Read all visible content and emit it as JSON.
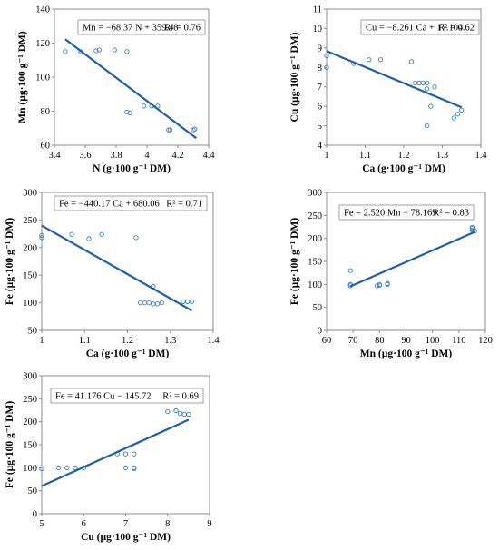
{
  "chart_data": [
    {
      "type": "scatter",
      "xlabel": "N (g·100 g⁻¹ DM)",
      "ylabel": "Mn (µg·100 g⁻¹ DM)",
      "xlim": [
        3.4,
        4.4
      ],
      "ylim": [
        60,
        140
      ],
      "xticks": [
        3.4,
        3.6,
        3.8,
        4.0,
        4.2,
        4.4
      ],
      "yticks": [
        60,
        80,
        100,
        120,
        140
      ],
      "xtick_labels": [
        "3.4",
        "3.6",
        "3.8",
        "4",
        "4.2",
        "4.4"
      ],
      "ytick_labels": [
        "60",
        "80",
        "100",
        "120",
        "140"
      ],
      "equation": "Mn = −68.37 N + 359.48",
      "r2": "R² = 0.76",
      "fit": {
        "slope": -68.37,
        "intercept": 359.48,
        "x_range": [
          3.47,
          4.32
        ]
      },
      "points": [
        [
          3.47,
          115
        ],
        [
          3.57,
          115
        ],
        [
          3.67,
          115.5
        ],
        [
          3.69,
          116
        ],
        [
          3.79,
          116
        ],
        [
          3.87,
          115
        ],
        [
          3.87,
          79.5
        ],
        [
          3.89,
          79
        ],
        [
          3.98,
          83
        ],
        [
          4.03,
          83
        ],
        [
          4.07,
          83
        ],
        [
          4.14,
          69
        ],
        [
          4.15,
          69
        ],
        [
          4.3,
          69
        ],
        [
          4.31,
          69.5
        ]
      ]
    },
    {
      "type": "scatter",
      "xlabel": "Ca (g·100 g⁻¹ DM)",
      "ylabel": "Cu (µg·100 g⁻¹ DM)",
      "xlim": [
        1.0,
        1.4
      ],
      "ylim": [
        4,
        11
      ],
      "xticks": [
        1.0,
        1.1,
        1.2,
        1.3,
        1.4
      ],
      "yticks": [
        4,
        5,
        6,
        7,
        8,
        9,
        10,
        11
      ],
      "xtick_labels": [
        "1",
        "1.1",
        "1.2",
        "1.3",
        "1.4"
      ],
      "ytick_labels": [
        "4",
        "5",
        "6",
        "7",
        "8",
        "9",
        "10",
        "11"
      ],
      "equation": "Cu = −8.261 Ca + 17.104",
      "r2": "R² = 0.62",
      "fit": {
        "slope": -8.261,
        "intercept": 17.104,
        "x_range": [
          1.0,
          1.35
        ]
      },
      "points": [
        [
          1.0,
          8.6
        ],
        [
          1.0,
          8.0
        ],
        [
          1.07,
          8.2
        ],
        [
          1.11,
          8.4
        ],
        [
          1.14,
          8.4
        ],
        [
          1.22,
          8.3
        ],
        [
          1.23,
          7.2
        ],
        [
          1.24,
          7.2
        ],
        [
          1.25,
          7.2
        ],
        [
          1.26,
          7.2
        ],
        [
          1.26,
          6.9
        ],
        [
          1.28,
          7.0
        ],
        [
          1.26,
          5.0
        ],
        [
          1.27,
          6.0
        ],
        [
          1.33,
          5.4
        ],
        [
          1.34,
          5.6
        ],
        [
          1.35,
          5.8
        ]
      ]
    },
    {
      "type": "scatter",
      "xlabel": "Ca (g·100 g⁻¹ DM)",
      "ylabel": "Fe (µg·100 g⁻¹ DM)",
      "xlim": [
        1.0,
        1.4
      ],
      "ylim": [
        50,
        300
      ],
      "xticks": [
        1.0,
        1.1,
        1.2,
        1.3,
        1.4
      ],
      "yticks": [
        50,
        100,
        150,
        200,
        250,
        300
      ],
      "xtick_labels": [
        "1",
        "1.1",
        "1.2",
        "1.3",
        "1.4"
      ],
      "ytick_labels": [
        "50",
        "100",
        "150",
        "200",
        "250",
        "300"
      ],
      "equation": "Fe = −440.17 Ca + 680.06",
      "r2": "R² = 0.71",
      "fit": {
        "slope": -440.17,
        "intercept": 680.06,
        "x_range": [
          1.0,
          1.35
        ]
      },
      "points": [
        [
          1.0,
          222
        ],
        [
          1.0,
          218
        ],
        [
          1.07,
          224
        ],
        [
          1.11,
          216
        ],
        [
          1.14,
          224
        ],
        [
          1.22,
          218
        ],
        [
          1.23,
          100
        ],
        [
          1.24,
          100
        ],
        [
          1.25,
          100
        ],
        [
          1.26,
          98
        ],
        [
          1.26,
          130
        ],
        [
          1.27,
          98
        ],
        [
          1.28,
          100
        ],
        [
          1.33,
          102
        ],
        [
          1.34,
          102
        ],
        [
          1.35,
          102
        ]
      ]
    },
    {
      "type": "scatter",
      "xlabel": "Mn (µg·100 g⁻¹ DM)",
      "ylabel": "Fe (µg·100 g⁻¹ DM)",
      "xlim": [
        60,
        120
      ],
      "ylim": [
        0,
        300
      ],
      "xticks": [
        60,
        70,
        80,
        90,
        100,
        110,
        120
      ],
      "yticks": [
        0,
        50,
        100,
        150,
        200,
        250,
        300
      ],
      "xtick_labels": [
        "60",
        "70",
        "80",
        "90",
        "100",
        "110",
        "120"
      ],
      "ytick_labels": [
        "0",
        "50",
        "100",
        "150",
        "200",
        "250",
        "300"
      ],
      "equation": "Fe = 2.520 Mn − 78.169",
      "r2": "R² = 0.83",
      "fit": {
        "slope": 2.52,
        "intercept": -78.169,
        "x_range": [
          69,
          116
        ]
      },
      "points": [
        [
          69,
          130
        ],
        [
          69,
          100
        ],
        [
          69,
          97
        ],
        [
          79,
          97
        ],
        [
          80,
          98
        ],
        [
          80,
          100
        ],
        [
          83,
          102
        ],
        [
          83,
          100
        ],
        [
          115,
          222
        ],
        [
          115,
          224
        ],
        [
          115,
          218
        ],
        [
          116,
          216
        ]
      ]
    },
    {
      "type": "scatter",
      "xlabel": "Cu (µg·100 g⁻¹ DM)",
      "ylabel": "Fe (µg·100 g⁻¹ DM)",
      "xlim": [
        5,
        9
      ],
      "ylim": [
        0,
        300
      ],
      "xticks": [
        5,
        6,
        7,
        8,
        9
      ],
      "yticks": [
        0,
        50,
        100,
        150,
        200,
        250,
        300
      ],
      "xtick_labels": [
        "5",
        "6",
        "7",
        "8",
        "9"
      ],
      "ytick_labels": [
        "0",
        "50",
        "100",
        "150",
        "200",
        "250",
        "300"
      ],
      "equation": "Fe = 41.176 Cu − 145.72",
      "r2": "R² = 0.69",
      "fit": {
        "slope": 41.176,
        "intercept": -145.72,
        "x_range": [
          5,
          8.5
        ]
      },
      "points": [
        [
          5.0,
          98
        ],
        [
          5.4,
          100
        ],
        [
          5.6,
          100
        ],
        [
          5.8,
          100
        ],
        [
          6.0,
          100
        ],
        [
          6.8,
          130
        ],
        [
          7.0,
          130
        ],
        [
          7.0,
          100
        ],
        [
          7.2,
          130
        ],
        [
          7.2,
          100
        ],
        [
          7.2,
          98
        ],
        [
          8.0,
          222
        ],
        [
          8.2,
          224
        ],
        [
          8.3,
          218
        ],
        [
          8.4,
          216
        ],
        [
          8.5,
          216
        ]
      ]
    }
  ]
}
